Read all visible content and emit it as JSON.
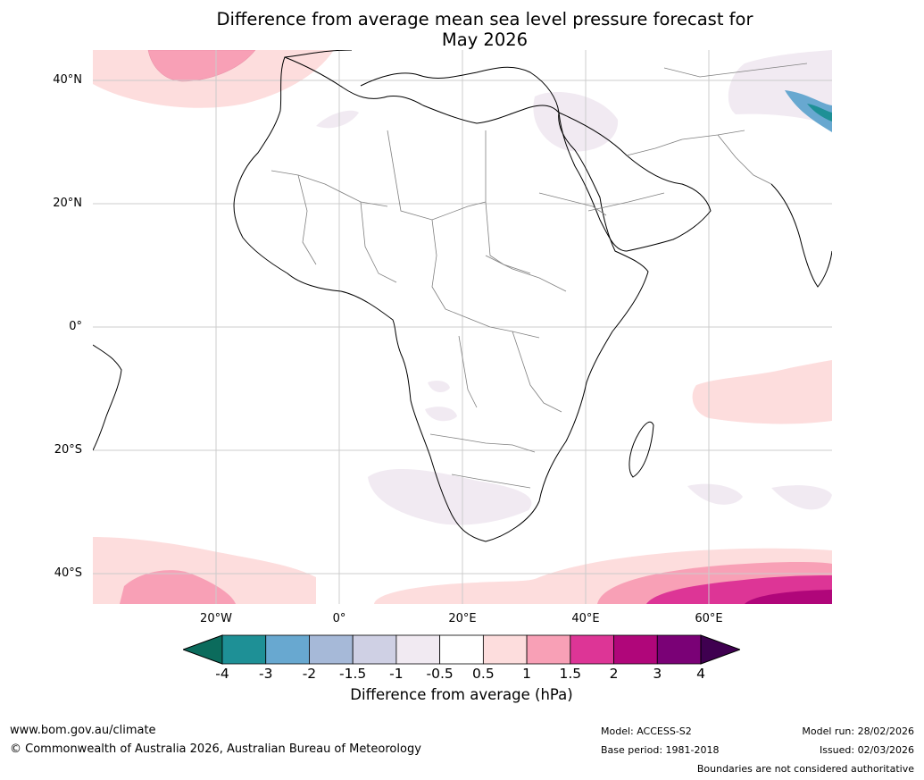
{
  "title": {
    "line1": "Difference from average mean sea level pressure forecast for",
    "line2": "May 2026"
  },
  "map": {
    "lat_labels": [
      "40°N",
      "20°N",
      "0°",
      "20°S",
      "40°S"
    ],
    "lon_labels": [
      "20°W",
      "0°",
      "20°E",
      "40°E",
      "60°E"
    ],
    "lat_range": [
      -45,
      45
    ],
    "lon_range": [
      -40,
      80
    ]
  },
  "colorbar": {
    "title": "Difference from average (hPa)",
    "ticks": [
      "-4",
      "-3",
      "-2",
      "-1.5",
      "-1",
      "-0.5",
      "0.5",
      "1",
      "1.5",
      "2",
      "3",
      "4"
    ],
    "colors": [
      "#0b6b5c",
      "#1e9096",
      "#68a8d0",
      "#a6b9d8",
      "#cfd0e4",
      "#f1eaf2",
      "#ffffff",
      "#fddddd",
      "#f8a0b6",
      "#dd3596",
      "#b0067a",
      "#7a0176",
      "#3f0050"
    ]
  },
  "footer": {
    "website": "www.bom.gov.au/climate",
    "copyright": "© Commonwealth of Australia 2026, Australian Bureau of Meteorology",
    "model": "Model: ACCESS-S2",
    "base_period": "Base period: 1981-2018",
    "model_run": "Model run: 28/02/2026",
    "issued": "Issued: 02/03/2026",
    "disclaimer": "Boundaries are not considered authoritative"
  }
}
